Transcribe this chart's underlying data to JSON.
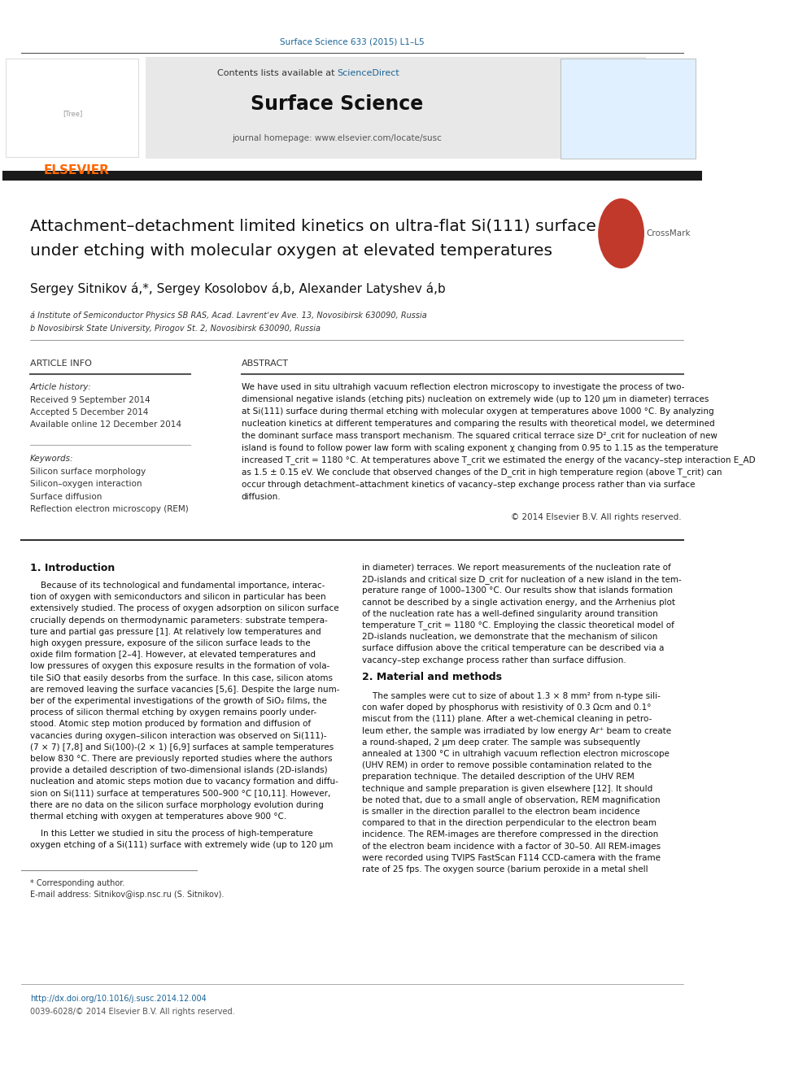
{
  "page_width": 9.92,
  "page_height": 13.23,
  "bg_color": "#ffffff",
  "journal_ref": "Surface Science 633 (2015) L1–L5",
  "journal_ref_color": "#1a6496",
  "header_bg": "#e8e8e8",
  "header_contents": "Contents lists available at ",
  "sciencedirect_text": "ScienceDirect",
  "sciencedirect_color": "#1a6496",
  "journal_name": "Surface Science",
  "journal_url": "journal homepage: www.elsevier.com/locate/susc",
  "elsevier_color": "#ff6600",
  "title_line1": "Attachment–detachment limited kinetics on ultra-flat Si(111) surface",
  "title_line2": "under etching with molecular oxygen at elevated temperatures",
  "authors": "Sergey Sitnikov á,*, Sergey Kosolobov á,b, Alexander Latyshev á,b",
  "affil_a": "á Institute of Semiconductor Physics SB RAS, Acad. Lavrentʼev Ave. 13, Novosibirsk 630090, Russia",
  "affil_b": "b Novosibirsk State University, Pirogov St. 2, Novosibirsk 630090, Russia",
  "section_article_info": "ARTICLE INFO",
  "article_history_label": "Article history:",
  "received": "Received 9 September 2014",
  "accepted": "Accepted 5 December 2014",
  "available": "Available online 12 December 2014",
  "keywords_label": "Keywords:",
  "keywords": [
    "Silicon surface morphology",
    "Silicon–oxygen interaction",
    "Surface diffusion",
    "Reflection electron microscopy (REM)"
  ],
  "section_abstract": "ABSTRACT",
  "abstract_text": "We have used in situ ultrahigh vacuum reflection electron microscopy to investigate the process of two-dimensional negative islands (etching pits) nucleation on extremely wide (up to 120 μm in diameter) terraces at Si(111) surface during thermal etching with molecular oxygen at temperatures above 1000 °C. By analyzing nucleation kinetics at different temperatures and comparing the results with theoretical model, we determined the dominant surface mass transport mechanism. The squared critical terrace size D²_crit for nucleation of new island is found to follow power law form with scaling exponent χ changing from 0.95 to 1.15 as the temperature increased T_crit = 1180 °C. At temperatures above T_crit we estimated the energy of the vacancy–step interaction E_AD as 1.5 ± 0.15 eV. We conclude that observed changes of the D_crit in high temperature region (above T_crit) can occur through detachment–attachment kinetics of vacancy–step exchange process rather than via surface diffusion.",
  "copyright": "© 2014 Elsevier B.V. All rights reserved.",
  "section1_title": "1. Introduction",
  "intro_text": "Because of its technological and fundamental importance, interaction of oxygen with semiconductors and silicon in particular has been extensively studied. The process of oxygen adsorption on silicon surface crucially depends on thermodynamic parameters: substrate temperature and partial gas pressure [1]. At relatively low temperatures and high oxygen pressure, exposure of the silicon surface leads to the oxide film formation [2–4]. However, at elevated temperatures and low pressures of oxygen this exposure results in the formation of volatile SiO that easily desorbs from the surface. In this case, silicon atoms are removed leaving the surface vacancies [5,6]. Despite the large number of the experimental investigations of the growth of SiO₂ films, the process of silicon thermal etching by oxygen remains poorly understood. Atomic step motion produced by formation and diffusion of vacancies during oxygen–silicon interaction was observed on Si(111)-(7 × 7) [7,8] and Si(100)-(2 × 1) [6,9] surfaces at sample temperatures below 830 °C. There are previously reported studies where the authors provide a detailed description of two-dimensional islands (2D-islands) nucleation and atomic steps motion due to vacancy formation and diffusion on Si(111) surface at temperatures 500–900 °C [10,11]. However, there are no data on the silicon surface morphology evolution during thermal etching with oxygen at temperatures above 900 °C.",
  "intro_text2": "In this Letter we studied in situ the process of high-temperature oxygen etching of a Si(111) surface with extremely wide (up to 120 μm in diameter) terraces. We report measurements of the nucleation rate of 2D-islands and critical size D_crit for nucleation of a new island in the temperature range of 1000–1300 °C. Our results show that islands formation cannot be described by a single activation energy, and the Arrhenius plot of the nucleation rate has a well-defined singularity around transition temperature T_crit = 1180 °C. Employing the classic theoretical model of 2D-islands nucleation, we demonstrate that the mechanism of silicon surface diffusion above the critical temperature can be described via a vacancy–step exchange process rather than surface diffusion.",
  "section2_title": "2. Material and methods",
  "material_text": "The samples were cut to size of about 1.3 × 8 mm² from n-type silicon wafer doped by phosphorus with resistivity of 0.3 Ωcm and 0.1° miscut from the (111) plane. After a wet-chemical cleaning in petroleum ether, the sample was irradiated by low energy Ar⁺ beam to create a round-shaped, 2 μm deep crater. The sample was subsequently annealed at 1300 °C in ultrahigh vacuum reflection electron microscope (UHV REM) in order to remove possible contamination related to the preparation technique. The detailed description of the UHV REM technique and sample preparation is given elsewhere [12]. It should be noted that, due to a small angle of observation, REM magnification is smaller in the direction parallel to the electron beam incidence compared to that in the direction perpendicular to the electron beam incidence. The REM-images are therefore compressed in the direction of the electron beam incidence with a factor of 30–50. All REM-images were recorded using TVIPS FastScan F114 CCD-camera with the frame rate of 25 fps. The oxygen source (barium peroxide in a metal shell",
  "footnote_star": "* Corresponding author.",
  "footnote_email": "E-mail address: Sitnikov@isp.nsc.ru (S. Sitnikov).",
  "doi": "http://dx.doi.org/10.1016/j.susc.2014.12.004",
  "issn": "0039-6028/© 2014 Elsevier B.V. All rights reserved."
}
